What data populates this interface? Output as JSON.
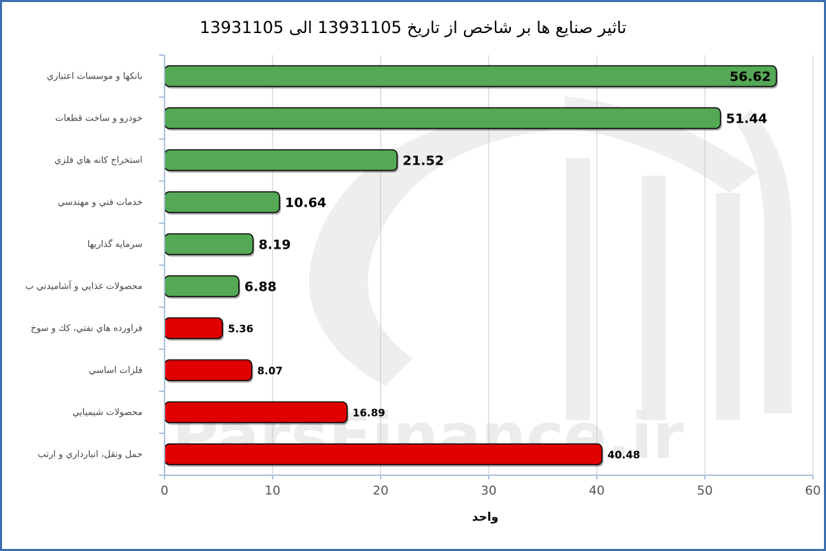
{
  "chart_data": {
    "type": "bar",
    "orientation": "horizontal",
    "title": "تاثير صنايع ها بر شاخص از تاريخ 13931105 الی 13931105",
    "xlabel": "واحد",
    "ylabel": "",
    "xlim": [
      0,
      60
    ],
    "xticks": [
      0,
      10,
      20,
      30,
      40,
      50,
      60
    ],
    "grid": true,
    "watermark": "ParsFinance.ir",
    "categories": [
      "بانكها و موسسات اعتباري",
      "خودرو و ساخت قطعات",
      "استخراج كانه هاي فلزي",
      "خدمات فني و مهندسي",
      "سرمايه گذاريها",
      "محصولات غذايي و آشاميدني ب",
      "فراورده هاي نفتي، كك و سوخ",
      "فلزات اساسي",
      "محصولات شيميايي",
      "حمل ونقل، انبارداري و ارتب"
    ],
    "values": [
      56.62,
      51.44,
      21.52,
      10.64,
      8.19,
      6.88,
      5.36,
      8.07,
      16.89,
      40.48
    ],
    "value_labels": [
      "56.62",
      "51.44",
      "21.52",
      "10.64",
      "8.19",
      "6.88",
      "5.36",
      "8.07",
      "16.89",
      "40.48"
    ],
    "bar_colors": [
      "#55a855",
      "#55a855",
      "#55a855",
      "#55a855",
      "#55a855",
      "#55a855",
      "#e00000",
      "#e00000",
      "#e00000",
      "#e00000"
    ],
    "colors": {
      "positive": "#55a855",
      "negative": "#e00000",
      "frame": "#3e6fae",
      "grid": "#c8c8c8",
      "axis": "#a9c0de"
    }
  }
}
